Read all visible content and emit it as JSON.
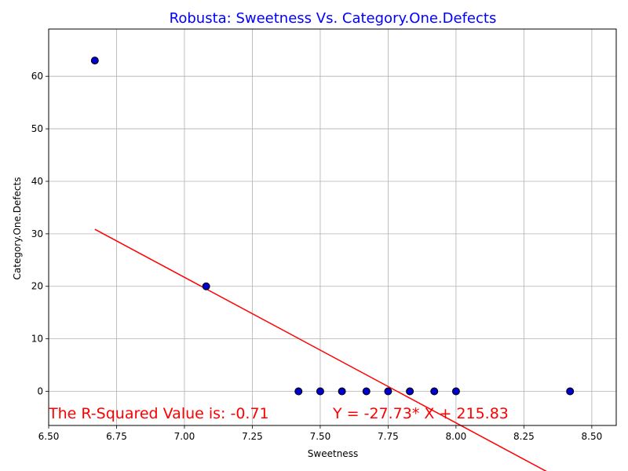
{
  "chart_data": {
    "type": "scatter",
    "title": "Robusta: Sweetness Vs. Category.One.Defects",
    "xlabel": "Sweetness",
    "ylabel": "Category.One.Defects",
    "xlim": [
      6.5,
      8.59
    ],
    "ylim": [
      -6.5,
      69
    ],
    "xticks": [
      "6.50",
      "6.75",
      "7.00",
      "7.25",
      "7.50",
      "7.75",
      "8.00",
      "8.25",
      "8.50"
    ],
    "yticks": [
      "0",
      "10",
      "20",
      "30",
      "40",
      "50",
      "60"
    ],
    "grid": true,
    "points": [
      {
        "x": 6.67,
        "y": 63
      },
      {
        "x": 7.08,
        "y": 20
      },
      {
        "x": 7.42,
        "y": 0
      },
      {
        "x": 7.5,
        "y": 0
      },
      {
        "x": 7.58,
        "y": 0
      },
      {
        "x": 7.67,
        "y": 0
      },
      {
        "x": 7.75,
        "y": 0
      },
      {
        "x": 7.83,
        "y": 0
      },
      {
        "x": 7.92,
        "y": 0
      },
      {
        "x": 8.0,
        "y": 0
      },
      {
        "x": 8.42,
        "y": 0
      }
    ],
    "regression": {
      "slope": -27.73,
      "intercept": 215.83,
      "x_range": [
        6.67,
        8.42
      ]
    },
    "annotations": {
      "r_squared": "The R-Squared Value is: -0.71",
      "equation": "Y = -27.73* X + 215.83"
    },
    "colors": {
      "title": "#0000ff",
      "points_fill": "#0000cc",
      "points_edge": "#000000",
      "regression_line": "#ff0000",
      "annotation": "#ff0000",
      "grid": "#b0b0b0"
    }
  }
}
